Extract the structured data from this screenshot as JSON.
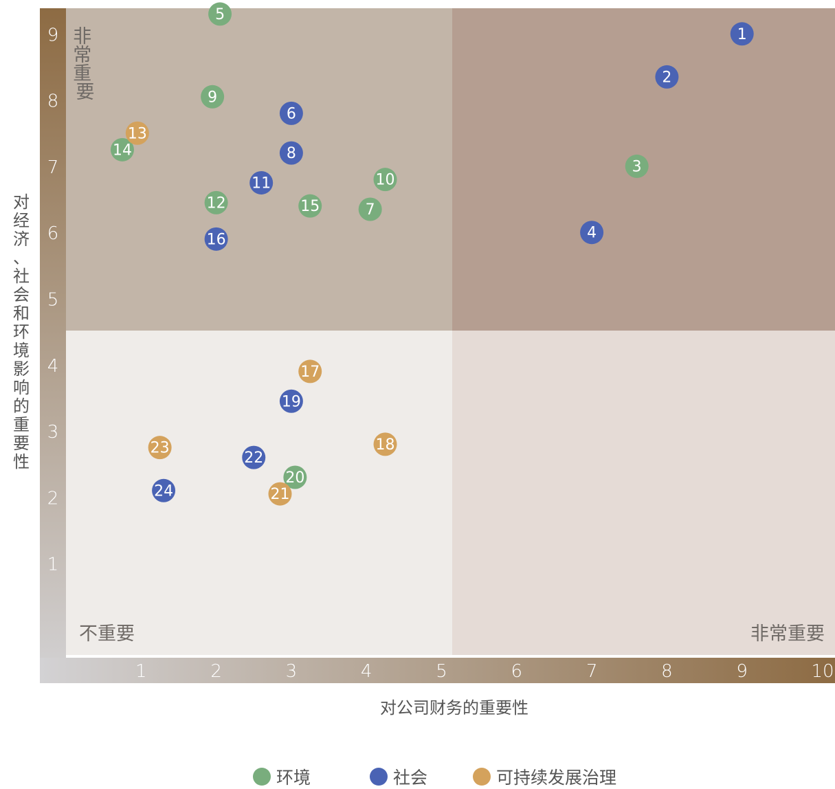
{
  "chart_data": {
    "type": "scatter",
    "xlabel": "对公司财务的重要性",
    "ylabel": "对经济、社会和环境影响的重要性",
    "xlim": [
      0,
      10
    ],
    "ylim": [
      0,
      10
    ],
    "x_ticks": [
      "1",
      "2",
      "3",
      "4",
      "5",
      "6",
      "7",
      "8",
      "9",
      "10"
    ],
    "y_ticks": [
      "1",
      "2",
      "3",
      "4",
      "5",
      "6",
      "7",
      "8",
      "9",
      "10"
    ],
    "quadrant_split": {
      "x": 5,
      "y": 5
    },
    "quadrant_colors": {
      "top_left": "#c2b5a8",
      "top_right": "#b59e91",
      "bottom_left": "#efece9",
      "bottom_right": "#e5dbd6"
    },
    "annotations": {
      "top_left_vertical": "非常重要",
      "bottom_left": "不重要",
      "bottom_right": "非常重要"
    },
    "series": [
      {
        "name": "环境",
        "color": "#79ad7d",
        "points": [
          {
            "id": "3",
            "x": 7.6,
            "y": 7.0
          },
          {
            "id": "5",
            "x": 2.05,
            "y": 9.3
          },
          {
            "id": "7",
            "x": 4.05,
            "y": 6.35
          },
          {
            "id": "9",
            "x": 1.95,
            "y": 8.05
          },
          {
            "id": "10",
            "x": 4.25,
            "y": 6.8
          },
          {
            "id": "12",
            "x": 2.0,
            "y": 6.45
          },
          {
            "id": "14",
            "x": 0.75,
            "y": 7.25
          },
          {
            "id": "15",
            "x": 3.25,
            "y": 6.4
          },
          {
            "id": "20",
            "x": 3.05,
            "y": 2.3
          }
        ]
      },
      {
        "name": "社会",
        "color": "#4a63b4",
        "points": [
          {
            "id": "1",
            "x": 9.0,
            "y": 9.0
          },
          {
            "id": "2",
            "x": 8.0,
            "y": 8.35
          },
          {
            "id": "4",
            "x": 7.0,
            "y": 6.0
          },
          {
            "id": "6",
            "x": 3.0,
            "y": 7.8
          },
          {
            "id": "8",
            "x": 3.0,
            "y": 7.2
          },
          {
            "id": "11",
            "x": 2.6,
            "y": 6.75
          },
          {
            "id": "16",
            "x": 2.0,
            "y": 5.9
          },
          {
            "id": "19",
            "x": 3.0,
            "y": 3.45
          },
          {
            "id": "22",
            "x": 2.5,
            "y": 2.6
          },
          {
            "id": "24",
            "x": 1.3,
            "y": 2.1
          }
        ]
      },
      {
        "name": "可持续发展治理",
        "color": "#d4a25c",
        "points": [
          {
            "id": "13",
            "x": 0.95,
            "y": 7.5
          },
          {
            "id": "17",
            "x": 3.25,
            "y": 3.9
          },
          {
            "id": "18",
            "x": 4.25,
            "y": 2.8
          },
          {
            "id": "21",
            "x": 2.85,
            "y": 2.05
          },
          {
            "id": "23",
            "x": 1.25,
            "y": 2.75
          }
        ]
      }
    ]
  }
}
